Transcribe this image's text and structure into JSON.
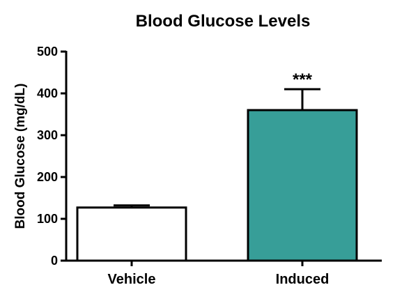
{
  "chart_data": {
    "type": "bar",
    "title": "Blood Glucose Levels",
    "xlabel": "",
    "ylabel": "Blood Glucose (mg/dL)",
    "ylim": [
      0,
      500
    ],
    "yticks": [
      0,
      100,
      200,
      300,
      400,
      500
    ],
    "categories": [
      "Vehicle",
      "Induced"
    ],
    "values": [
      127,
      360
    ],
    "error": [
      5,
      50
    ],
    "bar_colors": [
      "#ffffff",
      "#379e98"
    ],
    "annotations": [
      "",
      "***"
    ],
    "grid": false,
    "legend": "none"
  }
}
